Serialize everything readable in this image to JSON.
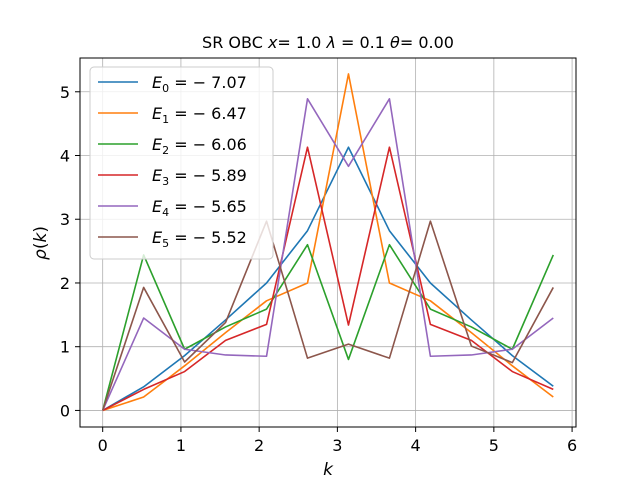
{
  "chart_data": {
    "type": "line",
    "title": "SR OBC x= 1.0 λ = 0.1 θ= 0.00",
    "title_parts": {
      "prefix": "SR OBC ",
      "x_sym": "x",
      "x_val": "= 1.0 ",
      "lambda_sym": "λ",
      "lambda_val": " = 0.1 ",
      "theta_sym": "θ",
      "theta_val": "= 0.00"
    },
    "xlabel": "k",
    "ylabel": "ρ(k)",
    "ylabel_parts": {
      "rho": "ρ",
      "open": "(",
      "k": "k",
      "close": ")"
    },
    "xlim": [
      -0.29,
      6.05
    ],
    "ylim": [
      -0.26,
      5.53
    ],
    "xticks": [
      0,
      1,
      2,
      3,
      4,
      5,
      6
    ],
    "xtick_labels": [
      "0",
      "1",
      "2",
      "3",
      "4",
      "5",
      "6"
    ],
    "yticks": [
      0,
      1,
      2,
      3,
      4,
      5
    ],
    "ytick_labels": [
      "0",
      "1",
      "2",
      "3",
      "4",
      "5"
    ],
    "grid": true,
    "legend_position": "top-left",
    "x": [
      0.0,
      0.5236,
      1.0472,
      1.5708,
      2.0944,
      2.618,
      3.1416,
      3.6652,
      4.1888,
      4.7124,
      5.236,
      5.7596
    ],
    "series": [
      {
        "name": "E_0 = -7.07",
        "label_sym": "E",
        "label_sub": "0",
        "label_val": " = − 7.07",
        "color": "#1f77b4",
        "values": [
          0.0,
          0.37,
          0.86,
          1.42,
          2.0,
          2.82,
          4.13,
          2.82,
          2.0,
          1.42,
          0.86,
          0.38
        ]
      },
      {
        "name": "E_1 = -6.47",
        "label_sym": "E",
        "label_sub": "1",
        "label_val": " = − 6.47",
        "color": "#ff7f0e",
        "values": [
          0.0,
          0.21,
          0.7,
          1.22,
          1.72,
          2.0,
          5.28,
          2.0,
          1.72,
          1.22,
          0.7,
          0.21
        ]
      },
      {
        "name": "E_2 = -6.06",
        "label_sym": "E",
        "label_sub": "2",
        "label_val": " = − 6.06",
        "color": "#2ca02c",
        "values": [
          0.0,
          2.44,
          0.96,
          1.31,
          1.59,
          2.6,
          0.8,
          2.6,
          1.59,
          1.31,
          0.96,
          2.44
        ]
      },
      {
        "name": "E_3 = -5.89",
        "label_sym": "E",
        "label_sub": "3",
        "label_val": " = − 5.89",
        "color": "#d62728",
        "values": [
          0.0,
          0.33,
          0.61,
          1.1,
          1.35,
          4.13,
          1.34,
          4.13,
          1.35,
          1.1,
          0.61,
          0.33
        ]
      },
      {
        "name": "E_4 = -5.65",
        "label_sym": "E",
        "label_sub": "4",
        "label_val": " = − 5.65",
        "color": "#9467bd",
        "values": [
          0.0,
          1.45,
          0.96,
          0.87,
          0.85,
          4.89,
          3.83,
          4.89,
          0.85,
          0.87,
          0.96,
          1.45
        ]
      },
      {
        "name": "E_5 = -5.52",
        "label_sym": "E",
        "label_sub": "5",
        "label_val": " = − 5.52",
        "color": "#8c564b",
        "values": [
          0.0,
          1.93,
          0.76,
          1.38,
          2.97,
          0.82,
          1.04,
          0.82,
          2.97,
          1.01,
          0.75,
          1.93
        ]
      }
    ]
  }
}
